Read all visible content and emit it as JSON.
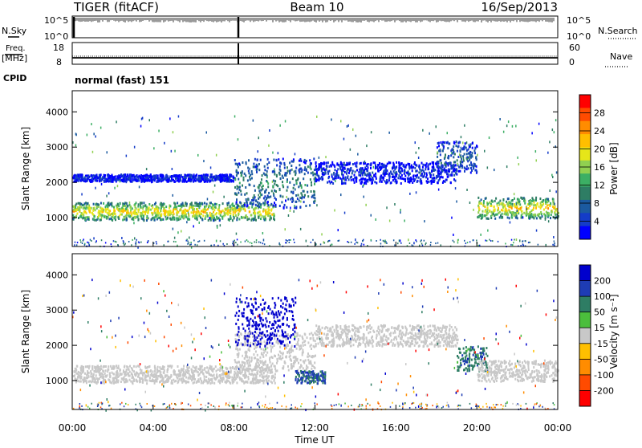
{
  "header": {
    "station": "TIGER (fitACF)",
    "beam": "Beam 10",
    "date": "16/Sep/2013"
  },
  "control_panels": {
    "nsky_label": "N.Sky",
    "nsky_ticks": [
      "10^5",
      "10^0"
    ],
    "nsearch_label": "N.Search",
    "nsearch_ticks": [
      "10^5",
      "10^0"
    ],
    "freq_label": "Freq.",
    "freq_unit": "[MHz]",
    "freq_ticks": [
      "18",
      "8"
    ],
    "nave_label": "Nave",
    "nave_ticks": [
      "60",
      "0"
    ],
    "cpid_label": "CPID",
    "cpid_value": "normal (fast) 151"
  },
  "chart_data": [
    {
      "type": "heatmap",
      "name": "power",
      "ylabel": "Slant Range [km]",
      "ylim": [
        180,
        4600
      ],
      "yticks": [
        "4000",
        "3000",
        "2000",
        "1000"
      ],
      "yticks_values": [
        4000,
        3000,
        2000,
        1000
      ],
      "colorbar_label": "Power [dB]",
      "colorbar_ticks": [
        "28",
        "24",
        "20",
        "16",
        "12",
        "8",
        "4"
      ],
      "colorbar_colors": [
        "#ff0000",
        "#ff4b00",
        "#ff8c00",
        "#ffbf00",
        "#e6e619",
        "#90d050",
        "#3caf64",
        "#2e7d64",
        "#1b5aa0",
        "#143cc8",
        "#0000ff"
      ],
      "bands": [
        {
          "hour_start": 0,
          "hour_end": 10,
          "range_lo": 950,
          "range_hi": 1450,
          "value_db": 22
        },
        {
          "hour_start": 0,
          "hour_end": 8,
          "range_lo": 2050,
          "range_hi": 2250,
          "value_db": 6
        },
        {
          "hour_start": 8,
          "hour_end": 12,
          "range_lo": 1300,
          "range_hi": 2700,
          "value_db": 12
        },
        {
          "hour_start": 12,
          "hour_end": 19,
          "range_lo": 2000,
          "range_hi": 2600,
          "value_db": 6
        },
        {
          "hour_start": 18,
          "hour_end": 20,
          "range_lo": 2300,
          "range_hi": 3200,
          "value_db": 10
        },
        {
          "hour_start": 20,
          "hour_end": 24,
          "range_lo": 1000,
          "range_hi": 1600,
          "value_db": 22
        }
      ]
    },
    {
      "type": "heatmap",
      "name": "velocity",
      "ylabel": "Slant Range [km]",
      "ylim": [
        180,
        4600
      ],
      "yticks": [
        "4000",
        "3000",
        "2000",
        "1000"
      ],
      "yticks_values": [
        4000,
        3000,
        2000,
        1000
      ],
      "xlabel": "Time UT",
      "xticks": [
        "00:00",
        "04:00",
        "08:00",
        "12:00",
        "16:00",
        "20:00",
        "00:00"
      ],
      "xlim_hours": [
        0,
        24
      ],
      "colorbar_label": "Velocity [m s⁻¹]",
      "colorbar_ticks": [
        "200",
        "100",
        "50",
        "15",
        "-15",
        "-50",
        "-100",
        "-200"
      ],
      "colorbar_colors": [
        "#0000cd",
        "#1e3cb4",
        "#2e7d64",
        "#4bbe3c",
        "#c8c8c8",
        "#ffbf00",
        "#ff8c00",
        "#ff4b00",
        "#ff0000"
      ],
      "bands": [
        {
          "hour_start": 0,
          "hour_end": 10,
          "range_lo": 950,
          "range_hi": 1450,
          "value_ms": 0
        },
        {
          "hour_start": 8,
          "hour_end": 12,
          "range_lo": 1300,
          "range_hi": 2400,
          "value_ms": 0
        },
        {
          "hour_start": 8,
          "hour_end": 11,
          "range_lo": 2000,
          "range_hi": 3400,
          "value_ms": 180
        },
        {
          "hour_start": 11,
          "hour_end": 12.5,
          "range_lo": 950,
          "range_hi": 1300,
          "value_ms": 80
        },
        {
          "hour_start": 12,
          "hour_end": 19,
          "range_lo": 2000,
          "range_hi": 2600,
          "value_ms": 0
        },
        {
          "hour_start": 19,
          "hour_end": 20.5,
          "range_lo": 1300,
          "range_hi": 2000,
          "value_ms": 60
        },
        {
          "hour_start": 20,
          "hour_end": 24,
          "range_lo": 1000,
          "range_hi": 1600,
          "value_ms": 0
        }
      ]
    }
  ]
}
